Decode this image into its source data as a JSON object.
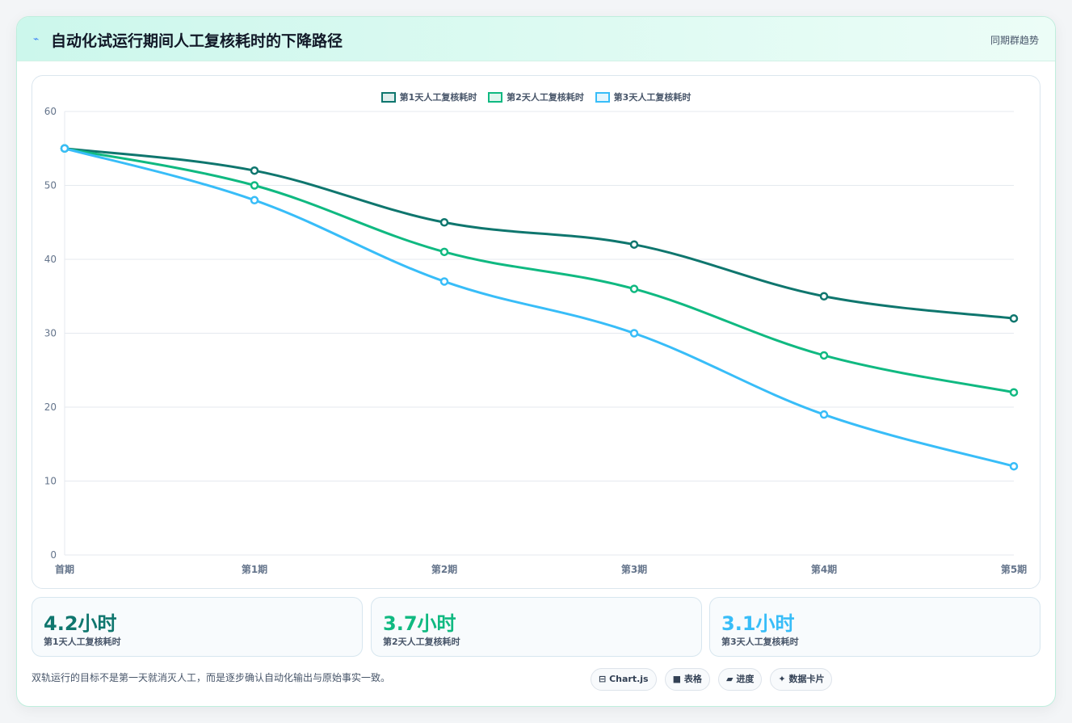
{
  "header": {
    "icon": "lightning-icon",
    "title": "自动化试运行期间人工复核耗时的下降路径",
    "tag": "同期群趋势"
  },
  "chart_data": {
    "type": "line",
    "categories": [
      "首期",
      "第1期",
      "第2期",
      "第3期",
      "第4期",
      "第5期"
    ],
    "series": [
      {
        "name": "第1天人工复核耗时",
        "color": "#0f766e",
        "values": [
          55,
          52,
          45,
          42,
          35,
          32
        ]
      },
      {
        "name": "第2天人工复核耗时",
        "color": "#10b981",
        "values": [
          55,
          50,
          41,
          36,
          27,
          22
        ]
      },
      {
        "name": "第3天人工复核耗时",
        "color": "#38bdf8",
        "values": [
          55,
          48,
          37,
          30,
          19,
          12
        ]
      }
    ],
    "ylim": [
      0,
      60
    ],
    "yticks": [
      0,
      10,
      20,
      30,
      40,
      50,
      60
    ],
    "grid": true,
    "legend": "top-center",
    "xlabel": "",
    "ylabel": ""
  },
  "kpis": [
    {
      "value": "4.2小时",
      "label": "第1天人工复核耗时",
      "color": "#0f766e"
    },
    {
      "value": "3.7小时",
      "label": "第2天人工复核耗时",
      "color": "#10b981"
    },
    {
      "value": "3.1小时",
      "label": "第3天人工复核耗时",
      "color": "#38bdf8"
    }
  ],
  "footnote": "双轨运行的目标不是第一天就消灭人工，而是逐步确认自动化输出与原始事实一致。",
  "chips": [
    {
      "icon": "chart-icon",
      "symbol": "⊟",
      "label": "Chart.js"
    },
    {
      "icon": "table-icon",
      "symbol": "■",
      "label": "表格"
    },
    {
      "icon": "progress-icon",
      "symbol": "▰",
      "label": "进度"
    },
    {
      "icon": "sparkle-icon",
      "symbol": "✦",
      "label": "数据卡片"
    }
  ]
}
